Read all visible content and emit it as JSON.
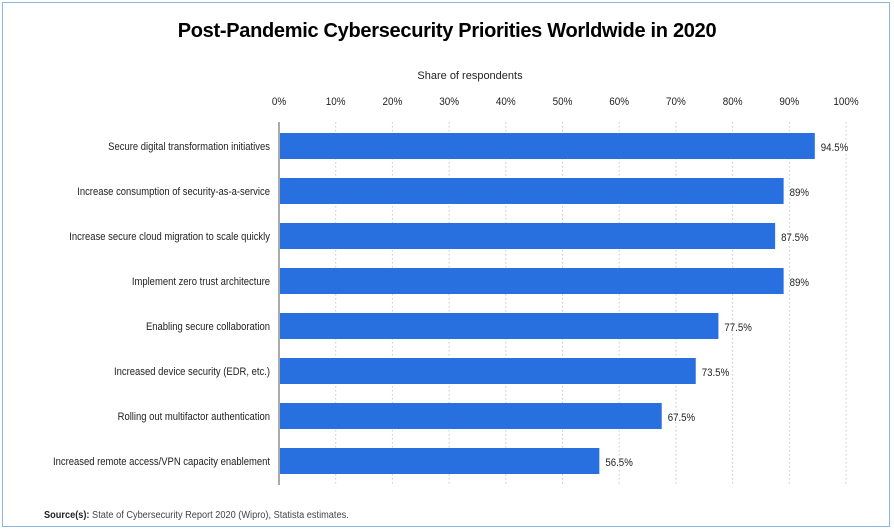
{
  "chart_data": {
    "type": "bar",
    "orientation": "horizontal",
    "title": "Post-Pandemic Cybersecurity Priorities Worldwide in 2020",
    "xlabel": "Share of respondents",
    "ylabel": "",
    "xlim": [
      0,
      100
    ],
    "x_ticks": [
      "0%",
      "10%",
      "20%",
      "30%",
      "40%",
      "50%",
      "60%",
      "70%",
      "80%",
      "90%",
      "100%"
    ],
    "grid": "vertical dotted",
    "bar_color": "#2870e0",
    "categories": [
      "Secure digital transformation initiatives",
      "Increase consumption of security-as-a-service",
      "Increase secure cloud migration to scale quickly",
      "Implement zero trust architecture",
      "Enabling secure collaboration",
      "Increased device security (EDR, etc.)",
      "Rolling out multifactor authentication",
      "Increased remote access/VPN capacity enablement"
    ],
    "values": [
      94.5,
      89,
      87.5,
      89,
      77.5,
      73.5,
      67.5,
      56.5
    ],
    "value_labels": [
      "94.5%",
      "89%",
      "87.5%",
      "89%",
      "77.5%",
      "73.5%",
      "67.5%",
      "56.5%"
    ]
  },
  "source": {
    "label": "Source(s):",
    "text": " State of Cybersecurity Report 2020 (Wipro), Statista estimates."
  }
}
